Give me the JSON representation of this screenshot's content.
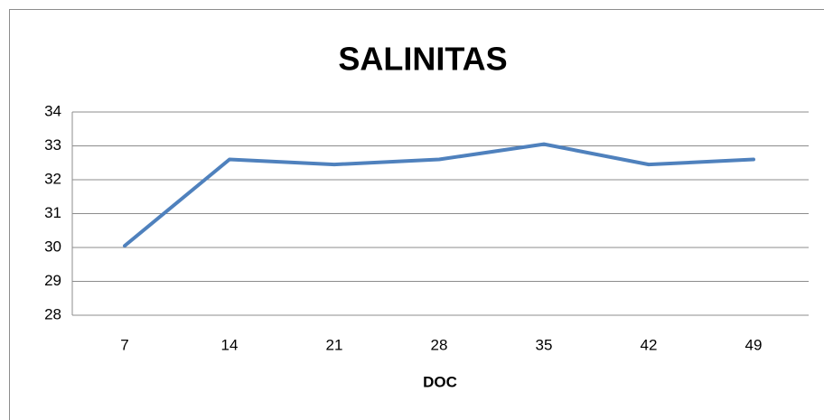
{
  "chart_data": {
    "type": "line",
    "title": "SALINITAS",
    "x_label": "DOC",
    "categories": [
      "7",
      "14",
      "21",
      "28",
      "35",
      "42",
      "49"
    ],
    "values": [
      30.05,
      32.6,
      32.45,
      32.6,
      33.05,
      32.45,
      32.6
    ],
    "color": "#4f81bd",
    "ylim": [
      28,
      34
    ],
    "yticks": [
      28,
      29,
      30,
      31,
      32,
      33,
      34
    ],
    "grid": true
  }
}
